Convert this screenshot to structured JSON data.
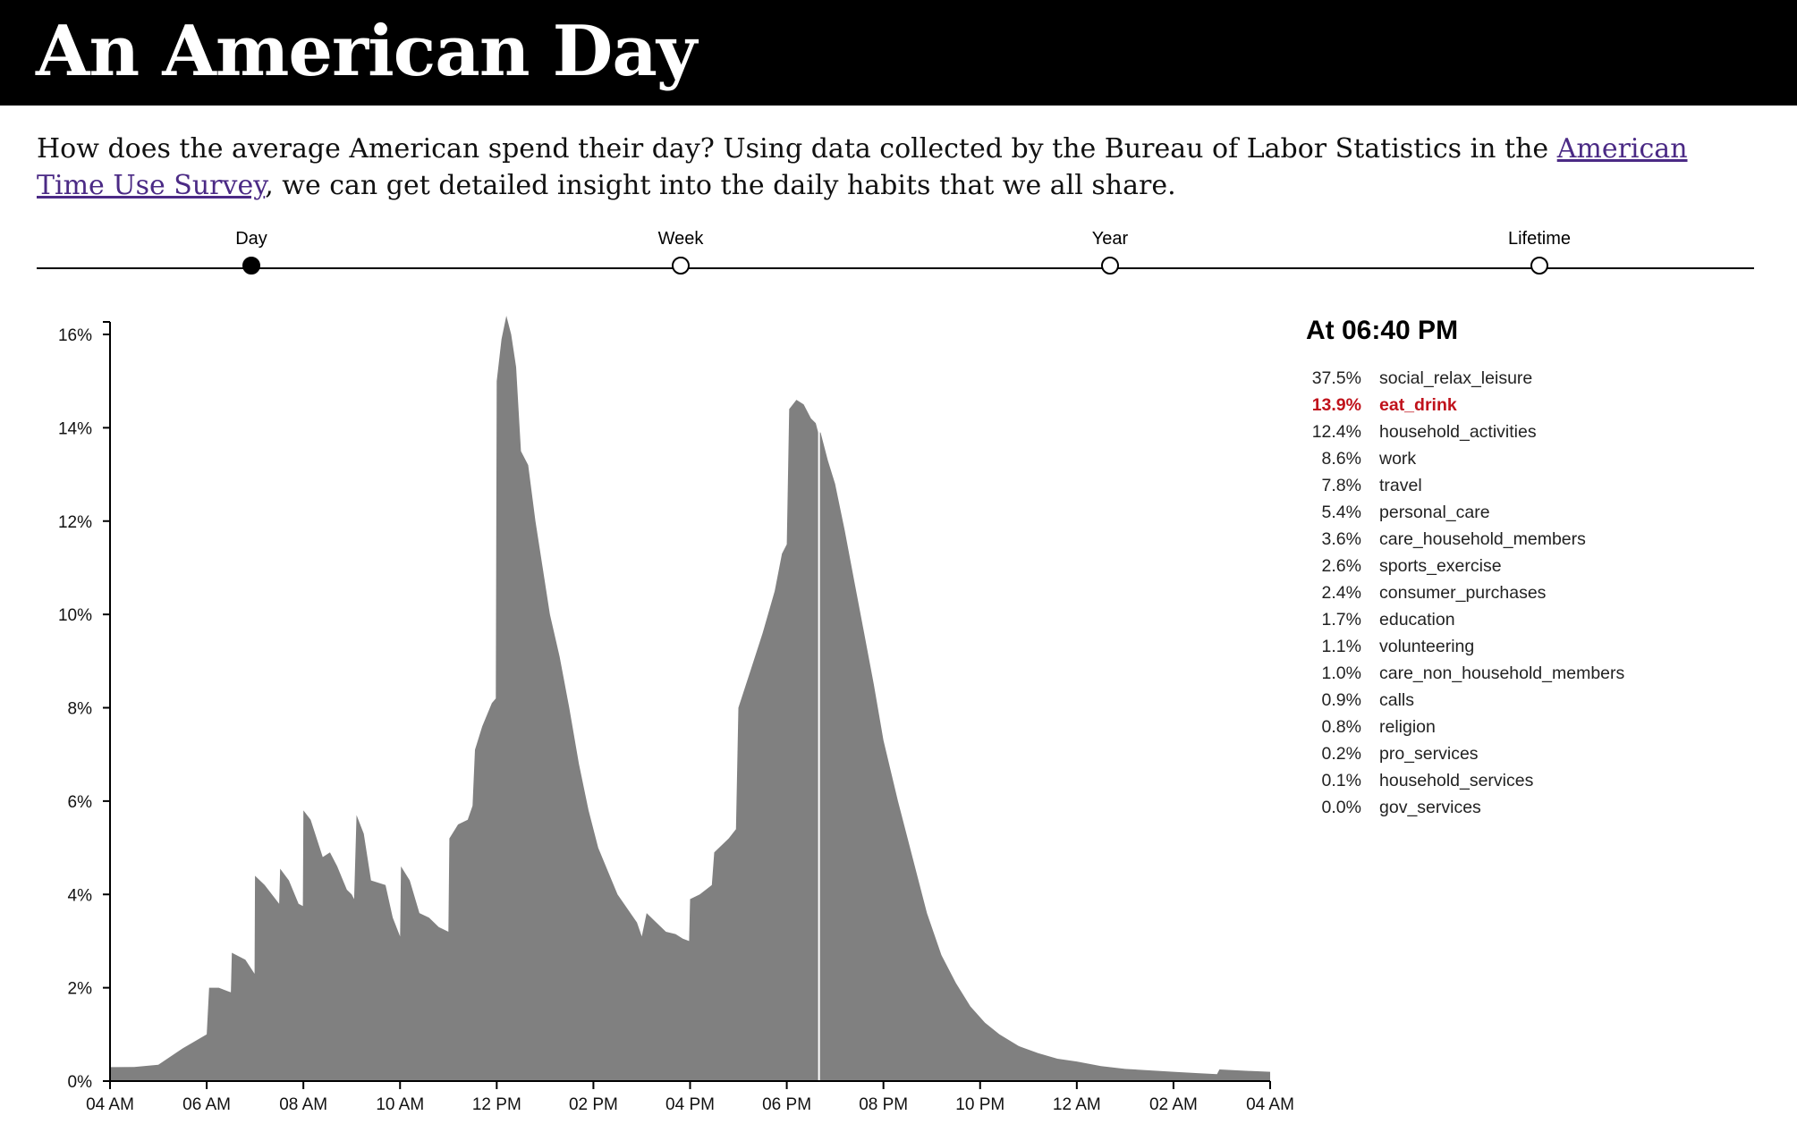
{
  "header": {
    "title": "An American Day"
  },
  "intro": {
    "before": "How does the average American spend their day? Using data collected by the Bureau of Labor Statistics in the ",
    "link_text": "American Time Use Survey",
    "after": ", we can get detailed insight into the daily habits that we all share."
  },
  "timeline": {
    "stops": [
      {
        "label": "Day",
        "active": true
      },
      {
        "label": "Week",
        "active": false
      },
      {
        "label": "Year",
        "active": false
      },
      {
        "label": "Lifetime",
        "active": false
      }
    ]
  },
  "panel": {
    "title": "At 06:40 PM",
    "highlight_color": "#c0121b",
    "rows": [
      {
        "pct": "37.5%",
        "name": "social_relax_leisure",
        "highlight": false
      },
      {
        "pct": "13.9%",
        "name": "eat_drink",
        "highlight": true
      },
      {
        "pct": "12.4%",
        "name": "household_activities",
        "highlight": false
      },
      {
        "pct": "8.6%",
        "name": "work",
        "highlight": false
      },
      {
        "pct": "7.8%",
        "name": "travel",
        "highlight": false
      },
      {
        "pct": "5.4%",
        "name": "personal_care",
        "highlight": false
      },
      {
        "pct": "3.6%",
        "name": "care_household_members",
        "highlight": false
      },
      {
        "pct": "2.6%",
        "name": "sports_exercise",
        "highlight": false
      },
      {
        "pct": "2.4%",
        "name": "consumer_purchases",
        "highlight": false
      },
      {
        "pct": "1.7%",
        "name": "education",
        "highlight": false
      },
      {
        "pct": "1.1%",
        "name": "volunteering",
        "highlight": false
      },
      {
        "pct": "1.0%",
        "name": "care_non_household_members",
        "highlight": false
      },
      {
        "pct": "0.9%",
        "name": "calls",
        "highlight": false
      },
      {
        "pct": "0.8%",
        "name": "religion",
        "highlight": false
      },
      {
        "pct": "0.2%",
        "name": "pro_services",
        "highlight": false
      },
      {
        "pct": "0.1%",
        "name": "household_services",
        "highlight": false
      },
      {
        "pct": "0.0%",
        "name": "gov_services",
        "highlight": false
      }
    ]
  },
  "chart_data": {
    "type": "area",
    "title": "",
    "xlabel": "",
    "ylabel": "",
    "bar_color": "#808080",
    "cursor_color": "#ffffff",
    "xlim_hours": [
      4,
      28
    ],
    "ylim": [
      0,
      16.5
    ],
    "y_ticks": [
      0,
      2,
      4,
      6,
      8,
      10,
      12,
      14,
      16
    ],
    "y_tick_labels": [
      "0%",
      "2%",
      "4%",
      "6%",
      "8%",
      "10%",
      "12%",
      "14%",
      "16%"
    ],
    "x_ticks_hours": [
      4,
      6,
      8,
      10,
      12,
      14,
      16,
      18,
      20,
      22,
      24,
      26,
      28
    ],
    "x_tick_labels": [
      "04 AM",
      "06 AM",
      "08 AM",
      "10 AM",
      "12 PM",
      "02 PM",
      "04 PM",
      "06 PM",
      "08 PM",
      "10 PM",
      "12 AM",
      "02 AM",
      "04 AM"
    ],
    "cursor_hour": 18.667,
    "series": [
      {
        "points": [
          [
            4.0,
            0.3
          ],
          [
            4.5,
            0.3
          ],
          [
            5.0,
            0.35
          ],
          [
            5.5,
            0.7
          ],
          [
            6.0,
            1.0
          ],
          [
            6.05,
            2.0
          ],
          [
            6.25,
            2.0
          ],
          [
            6.5,
            1.9
          ],
          [
            6.52,
            2.75
          ],
          [
            6.8,
            2.6
          ],
          [
            6.99,
            2.3
          ],
          [
            7.0,
            4.4
          ],
          [
            7.2,
            4.2
          ],
          [
            7.5,
            3.8
          ],
          [
            7.52,
            4.55
          ],
          [
            7.7,
            4.3
          ],
          [
            7.9,
            3.8
          ],
          [
            7.99,
            3.75
          ],
          [
            8.0,
            5.8
          ],
          [
            8.15,
            5.6
          ],
          [
            8.4,
            4.8
          ],
          [
            8.55,
            4.9
          ],
          [
            8.7,
            4.6
          ],
          [
            8.9,
            4.1
          ],
          [
            9.0,
            4.0
          ],
          [
            9.05,
            3.9
          ],
          [
            9.1,
            5.7
          ],
          [
            9.25,
            5.3
          ],
          [
            9.4,
            4.3
          ],
          [
            9.7,
            4.2
          ],
          [
            9.85,
            3.5
          ],
          [
            10.0,
            3.1
          ],
          [
            10.02,
            4.6
          ],
          [
            10.2,
            4.3
          ],
          [
            10.4,
            3.6
          ],
          [
            10.6,
            3.5
          ],
          [
            10.8,
            3.3
          ],
          [
            11.0,
            3.2
          ],
          [
            11.02,
            5.2
          ],
          [
            11.2,
            5.5
          ],
          [
            11.4,
            5.6
          ],
          [
            11.5,
            5.9
          ],
          [
            11.55,
            7.1
          ],
          [
            11.7,
            7.6
          ],
          [
            11.9,
            8.1
          ],
          [
            11.98,
            8.2
          ],
          [
            12.0,
            15.0
          ],
          [
            12.1,
            15.9
          ],
          [
            12.2,
            16.4
          ],
          [
            12.3,
            16.0
          ],
          [
            12.4,
            15.3
          ],
          [
            12.5,
            13.5
          ],
          [
            12.65,
            13.2
          ],
          [
            12.8,
            12.0
          ],
          [
            12.95,
            11.0
          ],
          [
            13.1,
            10.0
          ],
          [
            13.3,
            9.1
          ],
          [
            13.5,
            8.0
          ],
          [
            13.7,
            6.8
          ],
          [
            13.9,
            5.8
          ],
          [
            14.1,
            5.0
          ],
          [
            14.3,
            4.5
          ],
          [
            14.5,
            4.0
          ],
          [
            14.7,
            3.7
          ],
          [
            14.9,
            3.4
          ],
          [
            15.0,
            3.1
          ],
          [
            15.1,
            3.6
          ],
          [
            15.3,
            3.4
          ],
          [
            15.5,
            3.2
          ],
          [
            15.7,
            3.15
          ],
          [
            15.85,
            3.05
          ],
          [
            15.98,
            3.0
          ],
          [
            16.0,
            3.9
          ],
          [
            16.2,
            4.0
          ],
          [
            16.45,
            4.2
          ],
          [
            16.5,
            4.9
          ],
          [
            16.8,
            5.2
          ],
          [
            16.95,
            5.4
          ],
          [
            17.0,
            8.0
          ],
          [
            17.25,
            8.8
          ],
          [
            17.5,
            9.6
          ],
          [
            17.75,
            10.5
          ],
          [
            17.9,
            11.3
          ],
          [
            18.0,
            11.5
          ],
          [
            18.05,
            14.4
          ],
          [
            18.2,
            14.6
          ],
          [
            18.35,
            14.5
          ],
          [
            18.5,
            14.2
          ],
          [
            18.6,
            14.1
          ],
          [
            18.65,
            13.9
          ],
          [
            18.7,
            13.9
          ],
          [
            18.85,
            13.3
          ],
          [
            19.0,
            12.8
          ],
          [
            19.2,
            11.8
          ],
          [
            19.4,
            10.7
          ],
          [
            19.6,
            9.6
          ],
          [
            19.8,
            8.5
          ],
          [
            20.0,
            7.3
          ],
          [
            20.3,
            6.0
          ],
          [
            20.6,
            4.8
          ],
          [
            20.9,
            3.6
          ],
          [
            21.2,
            2.7
          ],
          [
            21.5,
            2.1
          ],
          [
            21.8,
            1.6
          ],
          [
            22.1,
            1.25
          ],
          [
            22.4,
            1.0
          ],
          [
            22.8,
            0.75
          ],
          [
            23.2,
            0.6
          ],
          [
            23.6,
            0.48
          ],
          [
            24.0,
            0.42
          ],
          [
            24.5,
            0.32
          ],
          [
            25.0,
            0.26
          ],
          [
            25.5,
            0.23
          ],
          [
            26.0,
            0.2
          ],
          [
            26.5,
            0.17
          ],
          [
            26.9,
            0.15
          ],
          [
            26.95,
            0.25
          ],
          [
            27.5,
            0.22
          ],
          [
            28.0,
            0.2
          ]
        ]
      }
    ]
  }
}
